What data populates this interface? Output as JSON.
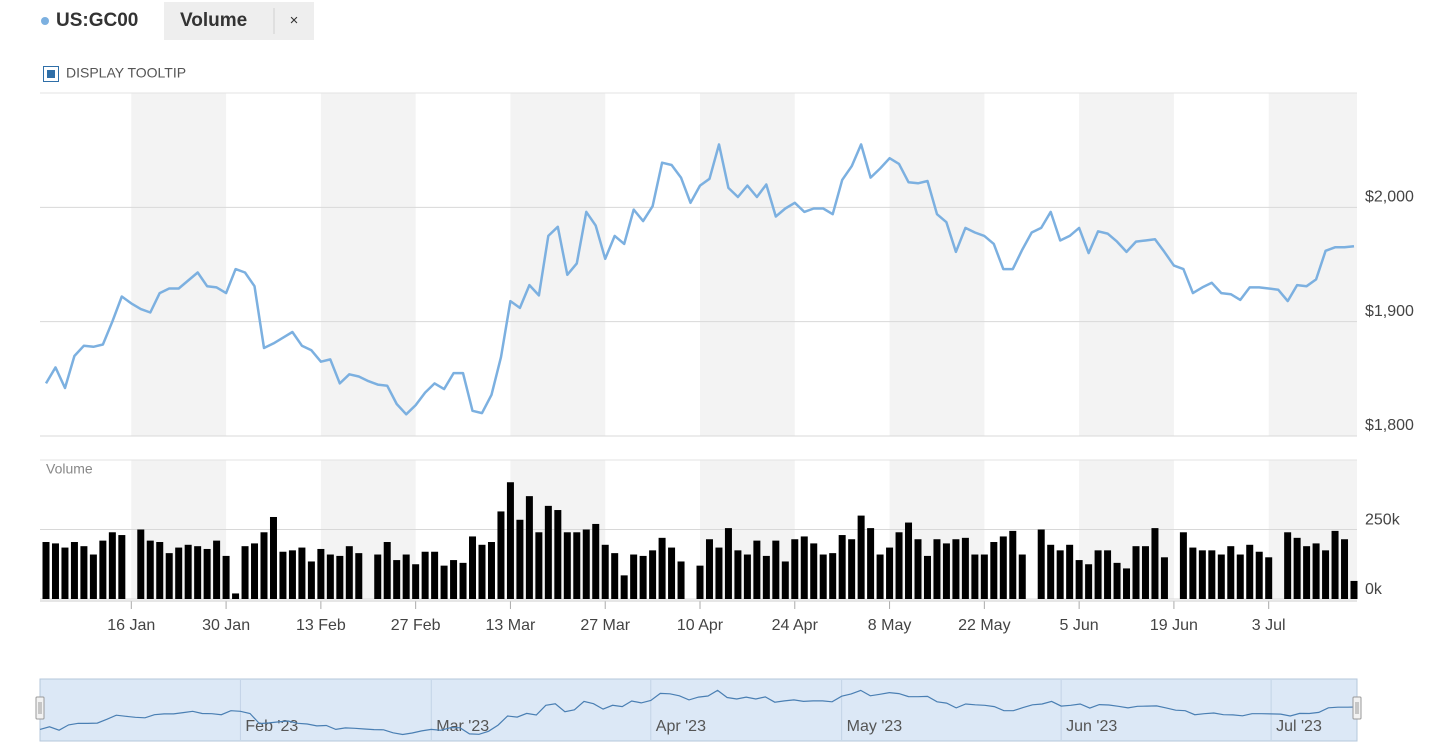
{
  "controls": {
    "close": "×",
    "tooltip_toggle": "DISPLAY TOOLTIP"
  },
  "chart_data": [
    {
      "type": "line",
      "x": [
        "3 Jan",
        "4 Jan",
        "5 Jan",
        "6 Jan",
        "9 Jan",
        "10 Jan",
        "11 Jan",
        "12 Jan",
        "13 Jan",
        "16 Jan",
        "17 Jan",
        "18 Jan",
        "19 Jan",
        "20 Jan",
        "23 Jan",
        "24 Jan",
        "25 Jan",
        "26 Jan",
        "27 Jan",
        "30 Jan",
        "31 Jan",
        "1 Feb",
        "2 Feb",
        "3 Feb",
        "6 Feb",
        "7 Feb",
        "8 Feb",
        "9 Feb",
        "10 Feb",
        "13 Feb",
        "14 Feb",
        "15 Feb",
        "16 Feb",
        "17 Feb",
        "20 Feb",
        "21 Feb",
        "22 Feb",
        "23 Feb",
        "24 Feb",
        "27 Feb",
        "28 Feb",
        "1 Mar",
        "2 Mar",
        "3 Mar",
        "6 Mar",
        "7 Mar",
        "8 Mar",
        "9 Mar",
        "10 Mar",
        "13 Mar",
        "14 Mar",
        "15 Mar",
        "16 Mar",
        "17 Mar",
        "20 Mar",
        "21 Mar",
        "22 Mar",
        "23 Mar",
        "24 Mar",
        "27 Mar",
        "28 Mar",
        "29 Mar",
        "30 Mar",
        "31 Mar",
        "3 Apr",
        "4 Apr",
        "5 Apr",
        "6 Apr",
        "7 Apr",
        "10 Apr",
        "11 Apr",
        "12 Apr",
        "13 Apr",
        "14 Apr",
        "17 Apr",
        "18 Apr",
        "19 Apr",
        "20 Apr",
        "21 Apr",
        "24 Apr",
        "25 Apr",
        "26 Apr",
        "27 Apr",
        "28 Apr",
        "1 May",
        "2 May",
        "3 May",
        "4 May",
        "5 May",
        "8 May",
        "9 May",
        "10 May",
        "11 May",
        "12 May",
        "15 May",
        "16 May",
        "17 May",
        "18 May",
        "19 May",
        "22 May",
        "23 May",
        "24 May",
        "25 May",
        "26 May",
        "29 May",
        "30 May",
        "31 May",
        "1 Jun",
        "2 Jun",
        "5 Jun",
        "6 Jun",
        "7 Jun",
        "8 Jun",
        "9 Jun",
        "12 Jun",
        "13 Jun",
        "14 Jun",
        "15 Jun",
        "16 Jun",
        "19 Jun",
        "20 Jun",
        "21 Jun",
        "22 Jun",
        "23 Jun",
        "26 Jun",
        "27 Jun",
        "28 Jun",
        "29 Jun",
        "30 Jun",
        "3 Jul",
        "4 Jul",
        "5 Jul",
        "6 Jul",
        "7 Jul",
        "10 Jul",
        "11 Jul",
        "12 Jul",
        "13 Jul",
        "14 Jul"
      ],
      "series": [
        {
          "name": "US:GC00",
          "color": "#7cb0e0",
          "values": [
            1846,
            1860,
            1842,
            1870,
            1879,
            1878,
            1880,
            1900,
            1922,
            1916,
            1911,
            1908,
            1925,
            1929,
            1929,
            1936,
            1943,
            1931,
            1930,
            1925,
            1946,
            1943,
            1931,
            1877,
            1881,
            1886,
            1891,
            1879,
            1875,
            1865,
            1867,
            1846,
            1854,
            1852,
            1848,
            1845,
            1844,
            1828,
            1819,
            1827,
            1838,
            1846,
            1841,
            1855,
            1855,
            1822,
            1820,
            1836,
            1869,
            1918,
            1912,
            1932,
            1923,
            1975,
            1983,
            1941,
            1951,
            1996,
            1984,
            1955,
            1975,
            1968,
            1998,
            1988,
            2001,
            2039,
            2037,
            2026,
            2004,
            2019,
            2025,
            2055,
            2017,
            2009,
            2019,
            2009,
            2020,
            1992,
            1999,
            2004,
            1996,
            1999,
            1999,
            1994,
            2024,
            2036,
            2055,
            2026,
            2034,
            2043,
            2038,
            2022,
            2021,
            2023,
            1994,
            1987,
            1961,
            1982,
            1978,
            1975,
            1968,
            1946,
            1946,
            1963,
            1978,
            1982,
            1996,
            1971,
            1975,
            1982,
            1960,
            1979,
            1977,
            1970,
            1961,
            1970,
            1971,
            1972,
            1961,
            1949,
            1946,
            1925,
            1930,
            1934,
            1925,
            1924,
            1919,
            1930,
            1930,
            1929,
            1928,
            1918,
            1932,
            1931,
            1937,
            1962,
            1965,
            1965,
            1966
          ]
        }
      ],
      "ylim": [
        1800,
        2100
      ],
      "yticks": [
        {
          "value": 1800,
          "label": "$1,800"
        },
        {
          "value": 1900,
          "label": "$1,900"
        },
        {
          "value": 2000,
          "label": "$2,000"
        }
      ],
      "xticks": [
        "16 Jan",
        "30 Jan",
        "13 Feb",
        "27 Feb",
        "13 Mar",
        "27 Mar",
        "10 Apr",
        "24 Apr",
        "8 May",
        "22 May",
        "5 Jun",
        "19 Jun",
        "3 Jul"
      ],
      "grid": true
    },
    {
      "type": "bar",
      "title": "Volume",
      "series": [
        {
          "name": "Volume",
          "color": "#000000",
          "values": [
            205000,
            200000,
            185000,
            205000,
            190000,
            160000,
            210000,
            240000,
            230000,
            null,
            250000,
            210000,
            205000,
            165000,
            185000,
            195000,
            190000,
            180000,
            210000,
            155000,
            20000,
            190000,
            200000,
            240000,
            295000,
            170000,
            175000,
            185000,
            135000,
            180000,
            160000,
            155000,
            190000,
            165000,
            null,
            160000,
            205000,
            140000,
            160000,
            125000,
            170000,
            170000,
            120000,
            140000,
            130000,
            225000,
            195000,
            205000,
            315000,
            420000,
            285000,
            370000,
            240000,
            335000,
            320000,
            240000,
            240000,
            250000,
            270000,
            195000,
            165000,
            85000,
            160000,
            155000,
            175000,
            220000,
            185000,
            135000,
            null,
            120000,
            215000,
            185000,
            255000,
            175000,
            160000,
            210000,
            155000,
            210000,
            135000,
            215000,
            225000,
            200000,
            160000,
            165000,
            230000,
            215000,
            300000,
            255000,
            160000,
            185000,
            240000,
            275000,
            215000,
            155000,
            215000,
            200000,
            215000,
            220000,
            160000,
            160000,
            205000,
            225000,
            245000,
            160000,
            null,
            250000,
            195000,
            175000,
            195000,
            140000,
            125000,
            175000,
            175000,
            130000,
            110000,
            190000,
            190000,
            255000,
            150000,
            null,
            240000,
            185000,
            175000,
            175000,
            160000,
            190000,
            160000,
            195000,
            170000,
            150000,
            null,
            240000,
            220000,
            190000,
            200000,
            175000,
            245000,
            215000,
            65000
          ]
        }
      ],
      "ylim": [
        0,
        500000
      ],
      "yticks": [
        {
          "value": 0,
          "label": "0k"
        },
        {
          "value": 250000,
          "label": "250k"
        }
      ],
      "grid": true
    }
  ],
  "navigator": {
    "ticks": [
      {
        "value": "1 Feb",
        "label": "Feb '23"
      },
      {
        "value": "1 Mar",
        "label": "Mar '23"
      },
      {
        "value": "3 Apr",
        "label": "Apr '23"
      },
      {
        "value": "1 May",
        "label": "May '23"
      },
      {
        "value": "1 Jun",
        "label": "Jun '23"
      },
      {
        "value": "3 Jul",
        "label": "Jul '23"
      }
    ]
  }
}
